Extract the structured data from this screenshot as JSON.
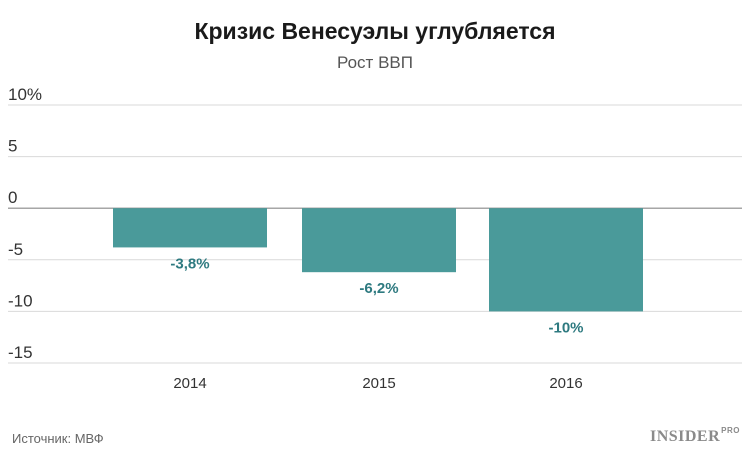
{
  "chart_data": {
    "type": "bar",
    "title": "Кризис Венесуэлы углубляется",
    "subtitle": "Рост ВВП",
    "categories": [
      "2014",
      "2015",
      "2016"
    ],
    "values": [
      -3.8,
      -6.2,
      -10
    ],
    "value_labels": [
      "-3,8%",
      "-6,2%",
      "-10%"
    ],
    "y_ticks": [
      10,
      5,
      0,
      -5,
      -10,
      -15
    ],
    "y_tick_labels": [
      "10%",
      "5",
      "0",
      "-5",
      "-10",
      "-15"
    ],
    "ylim": [
      -15,
      10
    ],
    "xlabel": "",
    "ylabel": "",
    "grid": true,
    "colors": {
      "bar": "#4a9a9a",
      "label": "#2e7a80",
      "grid": "#d9d9d9",
      "zero_line": "#888888"
    }
  },
  "footer": {
    "source": "Источник: МВФ",
    "logo_text": "INSIDER",
    "logo_sup": "PRO"
  }
}
